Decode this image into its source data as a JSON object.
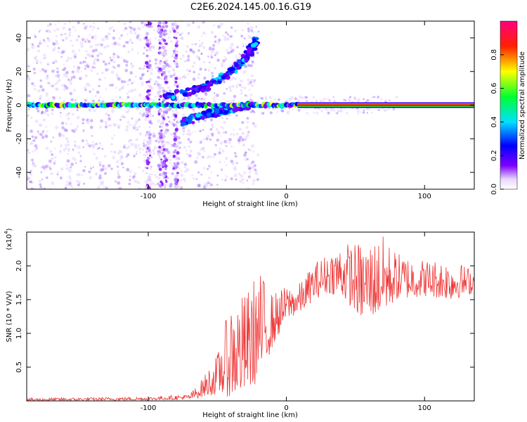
{
  "title": "C2E6.2024.145.00.16.G19",
  "chart_data": [
    {
      "type": "heatmap",
      "xlabel": "Height of straight line (km)",
      "ylabel": "Frequency (Hz)",
      "xlim": [
        -188,
        136
      ],
      "ylim": [
        -50,
        50
      ],
      "x_ticks": [
        -100,
        0,
        100
      ],
      "y_ticks": [
        -40,
        -20,
        0,
        20,
        40
      ],
      "colorbar": {
        "label": "Normalized spectral amplitude",
        "range": [
          0,
          1
        ],
        "ticks": [
          0.0,
          0.2,
          0.4,
          0.6,
          0.8
        ],
        "colormap": [
          "#ffffff",
          "#7f00ff",
          "#0000ff",
          "#00ffff",
          "#00ff00",
          "#ffff00",
          "#ff0000",
          "#ff0080"
        ]
      },
      "features": {
        "main_line": {
          "frequency": 0,
          "x_range": [
            -188,
            136
          ],
          "saturated_from": 8
        },
        "upper_branch": {
          "points": [
            [
              -88,
              5
            ],
            [
              -60,
              10
            ],
            [
              -40,
              20
            ],
            [
              -30,
              28
            ],
            [
              -22,
              38
            ]
          ]
        },
        "lower_branch": {
          "points": [
            [
              -75,
              -10
            ],
            [
              -55,
              -5
            ],
            [
              -40,
              -2
            ],
            [
              -28,
              0
            ]
          ]
        },
        "noise_columns": [
          -100,
          -91,
          -88,
          -80
        ]
      }
    },
    {
      "type": "line",
      "xlabel": "Height of straight line (km)",
      "ylabel": "SNR (10 * V/V)",
      "y_multiplier": "(x10",
      "y_multiplier_exp": "4",
      "y_multiplier_close": ")",
      "xlim": [
        -188,
        136
      ],
      "ylim": [
        0,
        2.5
      ],
      "x_ticks": [
        -100,
        0,
        100
      ],
      "y_ticks": [
        0.5,
        1.0,
        1.5,
        2.0
      ],
      "y_tick_labels": [
        "0.5",
        "1.0",
        "1.5",
        "2.0"
      ],
      "series": [
        {
          "color": "#ee3333",
          "envelope": {
            "x": [
              -188,
              -100,
              -70,
              -62,
              -50,
              -40,
              -30,
              -20,
              -10,
              0,
              10,
              20,
              30,
              40,
              55,
              70,
              80,
              100,
              120,
              136
            ],
            "low": [
              0.0,
              0.01,
              0.02,
              0.05,
              0.1,
              0.05,
              0.1,
              0.3,
              0.8,
              1.2,
              1.3,
              1.5,
              1.6,
              1.55,
              1.2,
              1.3,
              1.5,
              1.55,
              1.5,
              1.6
            ],
            "high": [
              0.04,
              0.06,
              0.1,
              0.3,
              0.7,
              1.5,
              1.6,
              1.95,
              1.6,
              1.7,
              1.75,
              2.05,
              2.2,
              2.35,
              2.35,
              2.45,
              2.2,
              2.1,
              2.1,
              1.95
            ]
          }
        }
      ]
    }
  ]
}
